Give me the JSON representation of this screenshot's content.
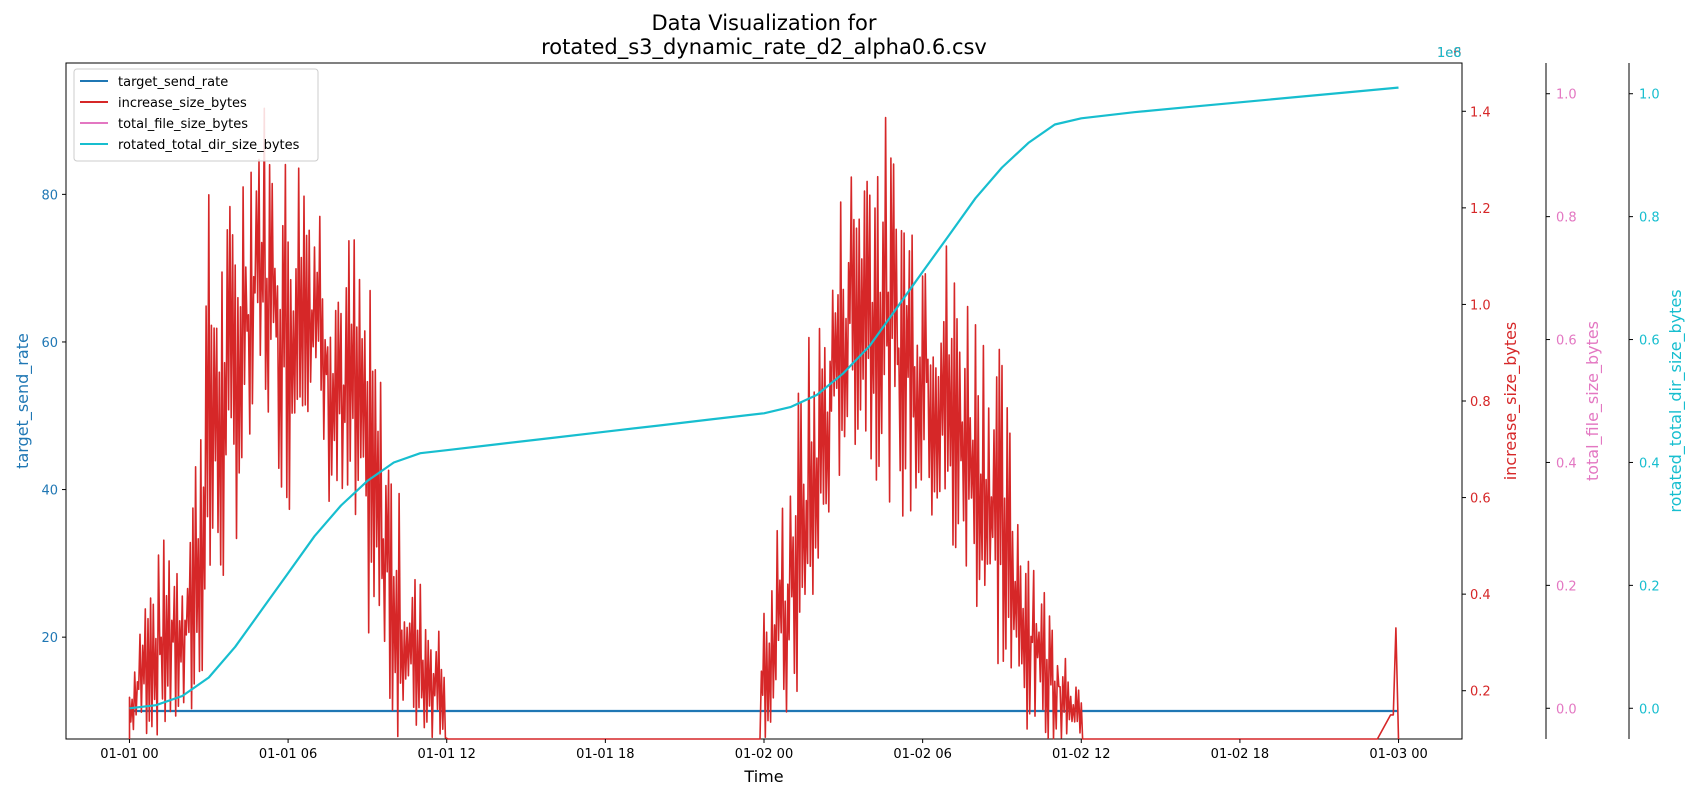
{
  "chart_data": {
    "type": "line",
    "title": [
      "Data Visualization for",
      "rotated_s3_dynamic_rate_d2_alpha0.6.csv"
    ],
    "xlabel": "Time",
    "x_ticks": [
      "01-01 00",
      "01-01 06",
      "01-01 12",
      "01-01 18",
      "01-02 00",
      "01-02 06",
      "01-02 12",
      "01-02 18",
      "01-03 00"
    ],
    "x_range_hours": [
      -2.4,
      50.4
    ],
    "legend": {
      "placement": "top-left",
      "entries": [
        "target_send_rate",
        "increase_size_bytes",
        "total_file_size_bytes",
        "rotated_total_dir_size_bytes"
      ]
    },
    "axes": {
      "left": {
        "label": "target_send_rate",
        "color": "#1f77b4",
        "ylim": [
          6.2,
          97.8
        ],
        "ticks": [
          "20",
          "40",
          "60",
          "80"
        ]
      },
      "right1": {
        "label": "increase_size_bytes",
        "color": "#d62728",
        "ylim": [
          0.1,
          1.5
        ],
        "ticks": [
          "0.2",
          "0.4",
          "0.6",
          "0.8",
          "1.0",
          "1.2",
          "1.4"
        ],
        "offset_text": "1e6"
      },
      "right2": {
        "label": "total_file_size_bytes",
        "color": "#e377c2",
        "ylim": [
          -0.05,
          1.05
        ],
        "ticks": [
          "0.0",
          "0.2",
          "0.4",
          "0.6",
          "0.8",
          "1.0"
        ]
      },
      "right3": {
        "label": "rotated_total_dir_size_bytes",
        "color": "#17becf",
        "ylim": [
          -0.05,
          1.05
        ],
        "ticks": [
          "0.0",
          "0.2",
          "0.4",
          "0.6",
          "0.8",
          "1.0"
        ],
        "offset_text": "1e8"
      }
    },
    "series": [
      {
        "name": "target_send_rate",
        "color": "#1f77b4",
        "axis": "left",
        "x_hours": [
          0,
          48
        ],
        "values": [
          10,
          10
        ]
      },
      {
        "name": "increase_size_bytes",
        "color": "#d62728",
        "axis": "right1",
        "x_hours": [
          0,
          0.5,
          1,
          1.5,
          2,
          2.5,
          3,
          3.5,
          4,
          4.5,
          5,
          5.5,
          6,
          6.5,
          7,
          7.5,
          8,
          8.5,
          9,
          9.5,
          10,
          10.5,
          11,
          11.5,
          12,
          12.5,
          23.9,
          24.2,
          24.5,
          25,
          25.5,
          26,
          26.5,
          27,
          27.5,
          28,
          28.5,
          29,
          29.5,
          30,
          30.5,
          31,
          31.5,
          32,
          32.5,
          33,
          33.5,
          34,
          34.5,
          35,
          35.5,
          36,
          36.5,
          37,
          47.2,
          47.7,
          47.8,
          47.9,
          48
        ],
        "values": [
          100000,
          190000,
          240000,
          330000,
          420000,
          560000,
          700000,
          830000,
          930000,
          1050000,
          1200000,
          1080000,
          1170000,
          1050000,
          1020000,
          1000000,
          940000,
          850000,
          760000,
          700000,
          560000,
          430000,
          280000,
          200000,
          140000,
          100000,
          100000,
          190000,
          260000,
          400000,
          560000,
          700000,
          850000,
          960000,
          1070000,
          1160000,
          1200000,
          1180000,
          1040000,
          1020000,
          980000,
          960000,
          900000,
          820000,
          740000,
          660000,
          520000,
          400000,
          270000,
          190000,
          150000,
          100000,
          100000,
          100000,
          100000,
          150000,
          150000,
          330000,
          100000
        ],
        "range_bands": [
          {
            "x_hours": [
              0,
              0.5,
              1,
              1.5,
              2,
              2.5,
              3,
              3.5,
              4,
              4.5,
              5,
              5.5,
              6,
              6.5,
              7,
              7.5,
              8,
              8.5,
              9,
              9.5,
              10,
              10.5,
              11,
              11.5,
              12
            ],
            "high": [
              220000,
              420000,
              480000,
              550000,
              560000,
              750000,
              1250000,
              1180000,
              1270000,
              1470000,
              1470000,
              1350000,
              1360000,
              1350000,
              1300000,
              1250000,
              1150000,
              1180000,
              1080000,
              880000,
              700000,
              500000,
              440000,
              380000,
              270000
            ],
            "low": [
              100000,
              100000,
              100000,
              100000,
              100000,
              100000,
              320000,
              380000,
              500000,
              570000,
              760000,
              700000,
              530000,
              800000,
              700000,
              580000,
              500000,
              440000,
              300000,
              240000,
              100000,
              100000,
              100000,
              100000,
              100000
            ]
          },
          {
            "x_hours": [
              23.9,
              24.2,
              24.5,
              25,
              25.5,
              26,
              26.5,
              27,
              27.5,
              28,
              28.5,
              29,
              29.5,
              30,
              30.5,
              31,
              31.5,
              32,
              32.5,
              33,
              33.5,
              34,
              34.5,
              35,
              35.5,
              36
            ],
            "high": [
              370000,
              410000,
              560000,
              750000,
              910000,
              1000000,
              1050000,
              1300000,
              1350000,
              1450000,
              1420000,
              1340000,
              1280000,
              1250000,
              1220000,
              1150000,
              1100000,
              1050000,
              1000000,
              900000,
              700000,
              600000,
              450000,
              360000,
              300000,
              180000
            ],
            "low": [
              100000,
              100000,
              100000,
              100000,
              200000,
              340000,
              560000,
              650000,
              700000,
              650000,
              620000,
              560000,
              520000,
              560000,
              500000,
              430000,
              400000,
              360000,
              300000,
              200000,
              100000,
              100000,
              100000,
              100000,
              100000,
              100000
            ]
          }
        ]
      },
      {
        "name": "total_file_size_bytes",
        "color": "#e377c2",
        "axis": "right2",
        "x_hours": [],
        "values": []
      },
      {
        "name": "rotated_total_dir_size_bytes",
        "color": "#17becf",
        "axis": "right3",
        "x_hours": [
          0,
          1,
          2,
          3,
          4,
          5,
          6,
          7,
          8,
          9,
          10,
          11,
          12,
          14,
          16,
          18,
          20,
          22,
          24,
          25,
          26,
          27,
          28,
          29,
          30,
          31,
          32,
          33,
          34,
          35,
          36,
          38,
          40,
          42,
          44,
          46,
          48
        ],
        "values": [
          0,
          0.005,
          0.02,
          0.05,
          0.1,
          0.16,
          0.22,
          0.28,
          0.33,
          0.37,
          0.4,
          0.415,
          0.42,
          0.43,
          0.44,
          0.45,
          0.46,
          0.47,
          0.48,
          0.49,
          0.51,
          0.545,
          0.59,
          0.65,
          0.71,
          0.77,
          0.83,
          0.88,
          0.92,
          0.95,
          0.96,
          0.97,
          0.978,
          0.986,
          0.994,
          1.002,
          1.01
        ]
      }
    ]
  }
}
